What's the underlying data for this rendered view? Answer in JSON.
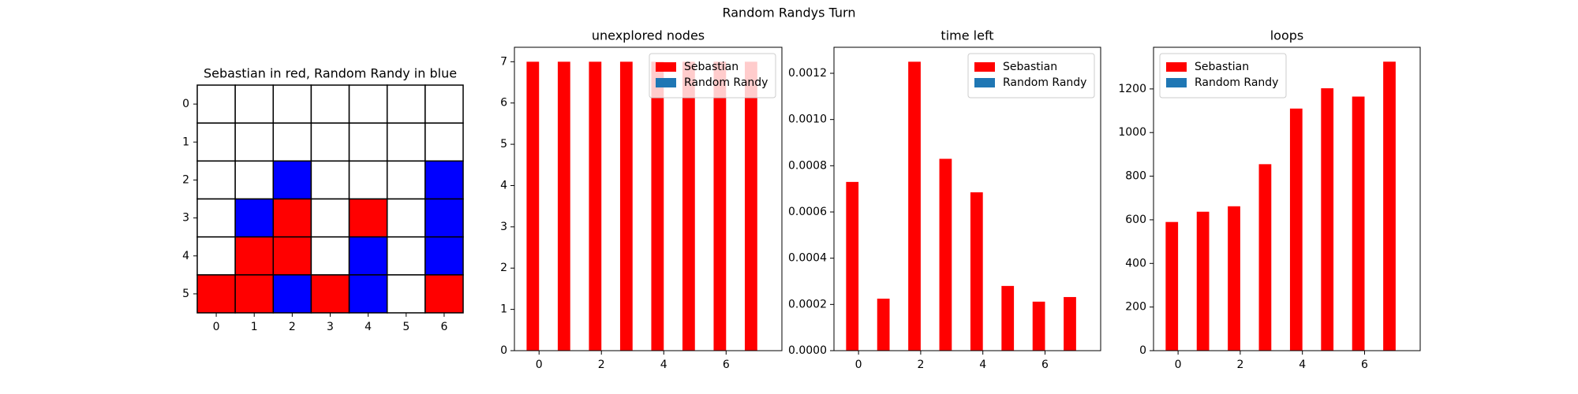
{
  "title": "Random Randys Turn",
  "chart_data": [
    {
      "type": "board",
      "title": "Sebastian in red, Random Randy in blue",
      "cells": [
        [
          0,
          0,
          0,
          0,
          0,
          0,
          0
        ],
        [
          0,
          0,
          0,
          0,
          0,
          0,
          0
        ],
        [
          0,
          0,
          2,
          0,
          0,
          0,
          2
        ],
        [
          0,
          2,
          1,
          0,
          1,
          0,
          2
        ],
        [
          0,
          1,
          1,
          0,
          2,
          0,
          2
        ],
        [
          1,
          1,
          2,
          1,
          2,
          0,
          1
        ]
      ],
      "colors": [
        "#ffffff",
        "#ff0000",
        "#0000ff"
      ],
      "xticks": [
        0,
        1,
        2,
        3,
        4,
        5,
        6
      ],
      "yticks": [
        0,
        1,
        2,
        3,
        4,
        5
      ]
    },
    {
      "type": "bar",
      "title": "unexplored nodes",
      "x": [
        0,
        1,
        2,
        3,
        4,
        5,
        6,
        7
      ],
      "series": [
        {
          "name": "Sebastian",
          "color": "#ff0000",
          "values": [
            7,
            7,
            7,
            7,
            7,
            7,
            7,
            7
          ]
        },
        {
          "name": "Random Randy",
          "color": "#1f77b4",
          "values": [
            0,
            0,
            0,
            0,
            0,
            0,
            0,
            0
          ]
        }
      ],
      "xlim": [
        -0.79,
        7.79
      ],
      "xticks": [
        0,
        2,
        4,
        6
      ],
      "ylim": [
        0,
        7.35
      ],
      "yticks": [
        0,
        1,
        2,
        3,
        4,
        5,
        6,
        7
      ],
      "legend": "upper right"
    },
    {
      "type": "bar",
      "title": "time left",
      "x": [
        0,
        1,
        2,
        3,
        4,
        5,
        6,
        7
      ],
      "series": [
        {
          "name": "Sebastian",
          "color": "#ff0000",
          "values": [
            0.00073,
            0.000225,
            0.00125,
            0.00083,
            0.000685,
            0.00028,
            0.000212,
            0.000232
          ]
        },
        {
          "name": "Random Randy",
          "color": "#1f77b4",
          "values": [
            0,
            0,
            0,
            0,
            0,
            0,
            0,
            0
          ]
        }
      ],
      "xlim": [
        -0.79,
        7.79
      ],
      "xticks": [
        0,
        2,
        4,
        6
      ],
      "ylim": [
        0,
        0.0013125
      ],
      "yticks": [
        {
          "value": 0,
          "label": "0.0000"
        },
        {
          "value": 0.0002,
          "label": "0.0002"
        },
        {
          "value": 0.0004,
          "label": "0.0004"
        },
        {
          "value": 0.0006,
          "label": "0.0006"
        },
        {
          "value": 0.0008,
          "label": "0.0008"
        },
        {
          "value": 0.001,
          "label": "0.0010"
        },
        {
          "value": 0.0012,
          "label": "0.0012"
        }
      ],
      "legend": "upper right"
    },
    {
      "type": "bar",
      "title": "loops",
      "x": [
        0,
        1,
        2,
        3,
        4,
        5,
        6,
        7
      ],
      "series": [
        {
          "name": "Sebastian",
          "color": "#ff0000",
          "values": [
            590,
            637,
            662,
            855,
            1110,
            1203,
            1165,
            1325
          ]
        },
        {
          "name": "Random Randy",
          "color": "#1f77b4",
          "values": [
            0,
            0,
            0,
            0,
            0,
            0,
            0,
            0
          ]
        }
      ],
      "xlim": [
        -0.79,
        7.79
      ],
      "xticks": [
        0,
        2,
        4,
        6
      ],
      "ylim": [
        0,
        1391
      ],
      "yticks": [
        0,
        200,
        400,
        600,
        800,
        1000,
        1200
      ],
      "legend": "upper left"
    }
  ]
}
